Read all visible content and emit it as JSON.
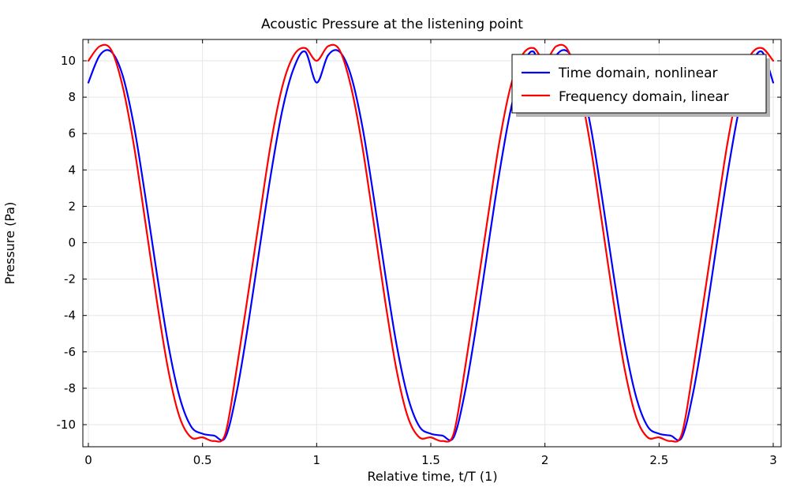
{
  "chart_data": {
    "type": "line",
    "title": "Acoustic Pressure at the listening point",
    "xlabel": "Relative time, t/T (1)",
    "ylabel": "Pressure (Pa)",
    "xlim": [
      0,
      3
    ],
    "ylim": [
      -11,
      11
    ],
    "xticks": [
      0,
      0.5,
      1,
      1.5,
      2,
      2.5,
      3
    ],
    "xtick_labels": [
      "0",
      "0.5",
      "1",
      "1.5",
      "2",
      "2.5",
      "3"
    ],
    "yticks": [
      10,
      8,
      6,
      4,
      2,
      0,
      -2,
      -4,
      -6,
      -8,
      -10
    ],
    "ytick_labels": [
      "10",
      "8",
      "6",
      "4",
      "2",
      "0",
      "-2",
      "-4",
      "-6",
      "-8",
      "-10"
    ],
    "grid": true,
    "legend_position": "top-right",
    "x": [
      0,
      0.05,
      0.1,
      0.15,
      0.2,
      0.25,
      0.3,
      0.35,
      0.4,
      0.45,
      0.5,
      0.55,
      0.6,
      0.65,
      0.7,
      0.75,
      0.8,
      0.85,
      0.9,
      0.95,
      1.0,
      1.05,
      1.1,
      1.15,
      1.2,
      1.25,
      1.3,
      1.35,
      1.4,
      1.45,
      1.5,
      1.55,
      1.6,
      1.65,
      1.7,
      1.75,
      1.8,
      1.85,
      1.9,
      1.95,
      2.0,
      2.05,
      2.1,
      2.15,
      2.2,
      2.25,
      2.3,
      2.35,
      2.4,
      2.45,
      2.5,
      2.55,
      2.6,
      2.65,
      2.7,
      2.75,
      2.8,
      2.85,
      2.9,
      2.95,
      3.0
    ],
    "series": [
      {
        "name": "Time domain, nonlinear",
        "color": "#0000ff",
        "values": [
          8.8,
          10.3,
          10.5,
          9.2,
          6.4,
          2.5,
          -1.7,
          -5.6,
          -8.5,
          -10.1,
          -10.5,
          -10.6,
          -10.7,
          -8.2,
          -4.5,
          -0.3,
          3.8,
          7.3,
          9.6,
          10.5,
          8.8,
          10.3,
          10.5,
          9.2,
          6.4,
          2.5,
          -1.7,
          -5.6,
          -8.5,
          -10.1,
          -10.5,
          -10.6,
          -10.7,
          -8.2,
          -4.5,
          -0.3,
          3.8,
          7.3,
          9.6,
          10.5,
          8.8,
          10.3,
          10.5,
          9.2,
          6.4,
          2.5,
          -1.7,
          -5.6,
          -8.5,
          -10.1,
          -10.5,
          -10.6,
          -10.7,
          -8.2,
          -4.5,
          -0.3,
          3.8,
          7.3,
          9.6,
          10.5,
          8.8
        ]
      },
      {
        "name": "Frequency domain, linear",
        "color": "#ff0000",
        "values": [
          10.0,
          10.8,
          10.6,
          8.6,
          5.3,
          1.1,
          -3.2,
          -7.0,
          -9.6,
          -10.7,
          -10.7,
          -10.9,
          -10.5,
          -6.9,
          -2.8,
          1.4,
          5.5,
          8.6,
          10.3,
          10.7,
          10.0,
          10.8,
          10.6,
          8.6,
          5.3,
          1.1,
          -3.2,
          -7.0,
          -9.6,
          -10.7,
          -10.7,
          -10.9,
          -10.5,
          -6.9,
          -2.8,
          1.4,
          5.5,
          8.6,
          10.3,
          10.7,
          10.0,
          10.8,
          10.6,
          8.6,
          5.3,
          1.1,
          -3.2,
          -7.0,
          -9.6,
          -10.7,
          -10.7,
          -10.9,
          -10.5,
          -6.9,
          -2.8,
          1.4,
          5.5,
          8.6,
          10.3,
          10.7,
          10.0
        ]
      }
    ]
  }
}
